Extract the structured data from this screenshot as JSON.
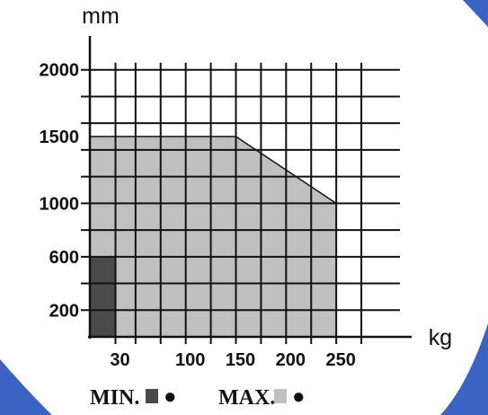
{
  "colors": {
    "accent_blue": "#3b63c4",
    "min_fill": "#4a4a4a",
    "max_fill": "#c0c0c0",
    "grid": "#111111",
    "text": "#111111"
  },
  "chart_data": {
    "type": "area",
    "title": "",
    "xlabel": "kg",
    "ylabel": "mm",
    "xlim": [
      0,
      300
    ],
    "ylim": [
      0,
      2200
    ],
    "grid": true,
    "x_ticks": [
      {
        "value": 30,
        "label": "30"
      },
      {
        "value": 100,
        "label": "100"
      },
      {
        "value": 150,
        "label": "150"
      },
      {
        "value": 200,
        "label": "200"
      },
      {
        "value": 250,
        "label": "250"
      }
    ],
    "y_ticks": [
      {
        "value": 200,
        "label": "200"
      },
      {
        "value": 600,
        "label": "600"
      },
      {
        "value": 1000,
        "label": "1000"
      },
      {
        "value": 1500,
        "label": "1500"
      },
      {
        "value": 2000,
        "label": "2000"
      }
    ],
    "series": [
      {
        "name": "MAX.",
        "color": "#c0c0c0",
        "points": [
          [
            0,
            0
          ],
          [
            0,
            1500
          ],
          [
            150,
            1500
          ],
          [
            250,
            1000
          ],
          [
            250,
            0
          ]
        ]
      },
      {
        "name": "MIN.",
        "color": "#4a4a4a",
        "points": [
          [
            0,
            0
          ],
          [
            0,
            600
          ],
          [
            30,
            600
          ],
          [
            30,
            0
          ]
        ]
      }
    ],
    "legend": {
      "position": "bottom",
      "items": [
        {
          "label": "MIN.",
          "swatch_color": "#4a4a4a"
        },
        {
          "label": "MAX.",
          "swatch_color": "#c0c0c0"
        }
      ],
      "bullet": "●"
    }
  }
}
